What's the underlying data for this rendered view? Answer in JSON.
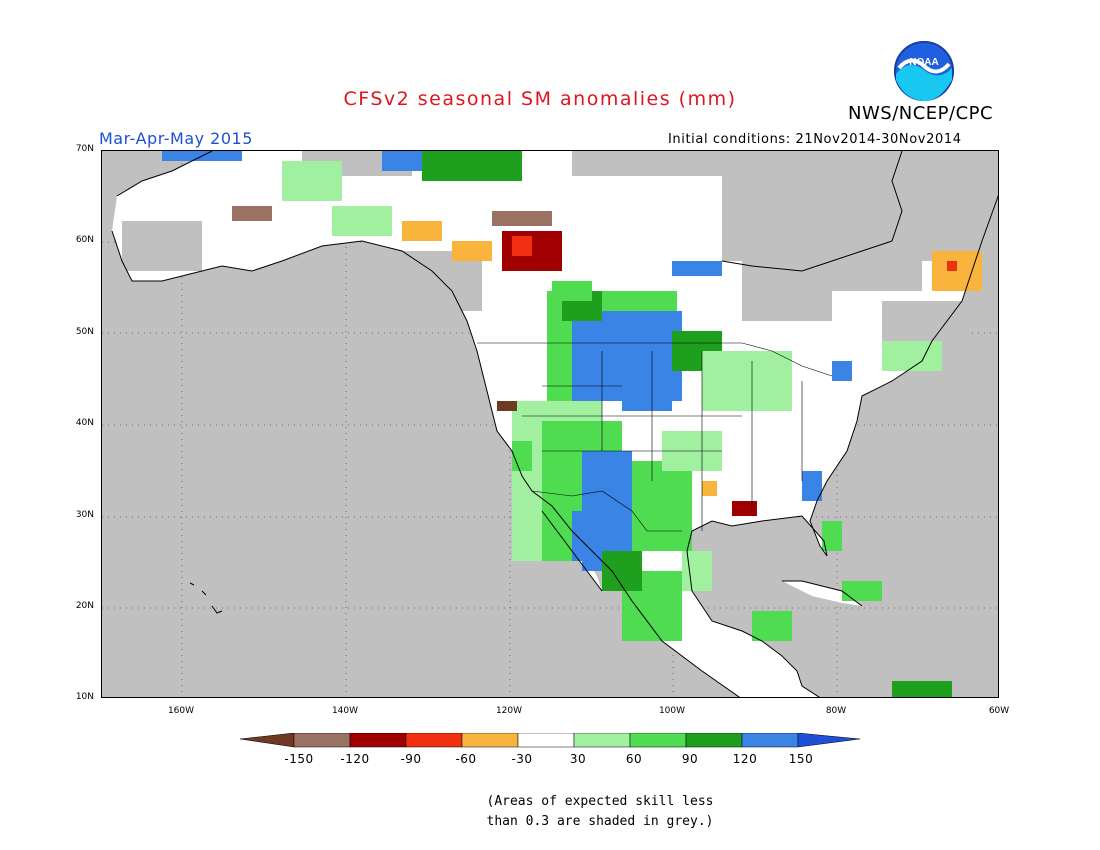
{
  "title": "CFSv2 seasonal SM anomalies (mm)",
  "agency": "NWS/NCEP/CPC",
  "logo_text": "NOAA",
  "season": "Mar-Apr-May 2015",
  "initial_conditions": "Initial conditions: 21Nov2014-30Nov2014",
  "map": {
    "lat_labels": [
      "70N",
      "60N",
      "50N",
      "40N",
      "30N",
      "20N",
      "10N"
    ],
    "lon_labels": [
      "160W",
      "140W",
      "120W",
      "100W",
      "80W",
      "60W"
    ],
    "lon_range": [
      -170,
      -60
    ],
    "lat_range": [
      10,
      70
    ],
    "background_color": "#c0c0c0",
    "cells": [
      {
        "lon": -115,
        "lat": 62,
        "v": "m120"
      },
      {
        "lon": -114,
        "lat": 62,
        "v": "m90"
      },
      {
        "lon": -116,
        "lat": 59,
        "v": "m90"
      },
      {
        "lon": -115,
        "lat": 58,
        "v": "m120"
      },
      {
        "lon": -117,
        "lat": 60,
        "v": "m120"
      },
      {
        "lon": -113,
        "lat": 59,
        "v": "m60"
      },
      {
        "lon": -118,
        "lat": 63,
        "v": "m150"
      },
      {
        "lon": -104,
        "lat": 63,
        "v": "m30"
      },
      {
        "lon": -70,
        "lat": 57,
        "v": "m60"
      },
      {
        "lon": -69,
        "lat": 58,
        "v": "m90"
      },
      {
        "lon": -109,
        "lat": 48,
        "v": "p150"
      },
      {
        "lon": -107,
        "lat": 47,
        "v": "p150"
      },
      {
        "lon": -105,
        "lat": 45,
        "v": "p150"
      },
      {
        "lon": -103,
        "lat": 44,
        "v": "p150"
      },
      {
        "lon": -106,
        "lat": 32,
        "v": "p150"
      },
      {
        "lon": -108,
        "lat": 30,
        "v": "p150"
      },
      {
        "lon": -110,
        "lat": 28,
        "v": "p150"
      },
      {
        "lon": -112,
        "lat": 30,
        "v": "p150"
      },
      {
        "lon": -104,
        "lat": 34,
        "v": "p120"
      },
      {
        "lon": -106,
        "lat": 37,
        "v": "p120"
      },
      {
        "lon": -102,
        "lat": 36,
        "v": "p90"
      },
      {
        "lon": -100,
        "lat": 33,
        "v": "p90"
      },
      {
        "lon": -99,
        "lat": 30,
        "v": "p60"
      },
      {
        "lon": -97,
        "lat": 28,
        "v": "p60"
      },
      {
        "lon": -120,
        "lat": 43,
        "v": "m150"
      },
      {
        "lon": -119,
        "lat": 43,
        "v": "m150"
      },
      {
        "lon": -84,
        "lat": 30,
        "v": "m120"
      },
      {
        "lon": -78,
        "lat": 38,
        "v": "m150"
      },
      {
        "lon": -74,
        "lat": 45,
        "v": "m150"
      },
      {
        "lon": -80,
        "lat": 42,
        "v": "m60"
      },
      {
        "lon": -105,
        "lat": 27,
        "v": "m120"
      },
      {
        "lon": -82,
        "lat": 33,
        "v": "p150"
      },
      {
        "lon": -101,
        "lat": 55,
        "v": "p90"
      },
      {
        "lon": -103,
        "lat": 54,
        "v": "p120"
      }
    ]
  },
  "colorbar": {
    "labels": [
      "-150",
      "-120",
      "-90",
      "-60",
      "-30",
      "30",
      "60",
      "90",
      "120",
      "150"
    ],
    "colors": [
      "#6e3a24",
      "#9a7264",
      "#a00000",
      "#f03010",
      "#f8b43c",
      "#ffffff",
      "#a0f0a0",
      "#50dc50",
      "#1ea01e",
      "#3a84e6",
      "#1e4fd8"
    ]
  },
  "note": [
    "(Areas of expected skill less",
    "than 0.3 are shaded in grey.)"
  ]
}
